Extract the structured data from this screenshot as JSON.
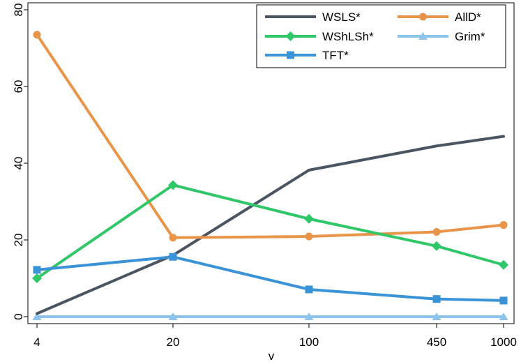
{
  "chart_data": {
    "type": "line",
    "x": [
      "4",
      "20",
      "100",
      "450",
      "1000"
    ],
    "xlabel": "v",
    "ylabel": "",
    "ylim": [
      0,
      80
    ],
    "yticks": [
      0,
      20,
      40,
      60,
      80
    ],
    "grid": false,
    "legend_position": "top-right",
    "legend_columns": 2,
    "series": [
      {
        "name": "WSLS*",
        "color": "#4a5562",
        "marker": "none",
        "values": [
          0.8,
          16.0,
          38.2,
          44.5,
          47.0
        ]
      },
      {
        "name": "AllD*",
        "color": "#e8954a",
        "marker": "circle",
        "values": [
          73.5,
          20.6,
          20.9,
          22.1,
          23.9
        ]
      },
      {
        "name": "WShLSh*",
        "color": "#2fc768",
        "marker": "diamond",
        "values": [
          10.0,
          34.3,
          25.5,
          18.4,
          13.5
        ]
      },
      {
        "name": "Grim*",
        "color": "#8cc4ec",
        "marker": "triangle",
        "values": [
          0,
          0,
          0,
          0,
          0
        ]
      },
      {
        "name": "TFT*",
        "color": "#3a93d6",
        "marker": "square",
        "values": [
          12.2,
          15.6,
          7.1,
          4.6,
          4.2
        ]
      }
    ]
  }
}
